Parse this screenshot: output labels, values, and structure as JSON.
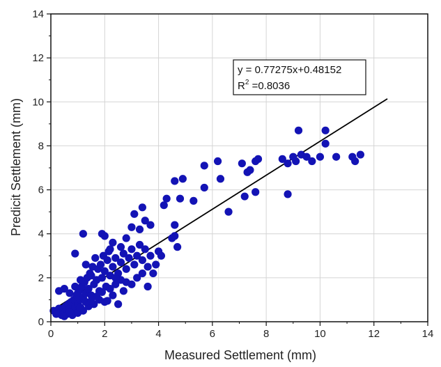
{
  "chart_data": {
    "type": "scatter",
    "xlabel": "Measured Settlement (mm)",
    "ylabel": "Predicit Settlement (mm)",
    "xlim": [
      0,
      14
    ],
    "ylim": [
      0,
      14
    ],
    "xticks": [
      0,
      2,
      4,
      6,
      8,
      10,
      12,
      14
    ],
    "yticks": [
      0,
      2,
      4,
      6,
      8,
      10,
      12,
      14
    ],
    "grid": true,
    "marker_color": "#1313b5",
    "fit_line": {
      "slope": 0.77275,
      "intercept": 0.48152,
      "x_range": [
        0.1,
        12.5
      ],
      "color": "#000000"
    },
    "annotation": {
      "equation": "y = 0.77275x+0.48152",
      "r2_prefix": "R",
      "r2_exponent": "2",
      "r2_value": " =0.8036"
    },
    "points": [
      [
        0.1,
        0.5
      ],
      [
        0.2,
        0.5
      ],
      [
        0.3,
        0.6
      ],
      [
        0.35,
        0.45
      ],
      [
        0.4,
        0.5
      ],
      [
        0.45,
        0.6
      ],
      [
        0.5,
        0.4
      ],
      [
        0.55,
        0.7
      ],
      [
        0.6,
        0.5
      ],
      [
        0.65,
        0.8
      ],
      [
        0.7,
        0.6
      ],
      [
        0.75,
        0.9
      ],
      [
        0.8,
        0.55
      ],
      [
        0.85,
        1.0
      ],
      [
        0.9,
        0.7
      ],
      [
        0.95,
        1.2
      ],
      [
        1.0,
        0.8
      ],
      [
        1.05,
        1.4
      ],
      [
        1.1,
        1.0
      ],
      [
        1.15,
        1.6
      ],
      [
        1.2,
        1.1
      ],
      [
        1.25,
        1.8
      ],
      [
        1.3,
        1.3
      ],
      [
        1.35,
        2.0
      ],
      [
        1.4,
        1.5
      ],
      [
        1.45,
        2.2
      ],
      [
        1.5,
        1.2
      ],
      [
        1.55,
        2.5
      ],
      [
        1.6,
        1.7
      ],
      [
        1.65,
        2.9
      ],
      [
        1.7,
        1.9
      ],
      [
        1.75,
        2.4
      ],
      [
        1.8,
        1.4
      ],
      [
        1.85,
        2.6
      ],
      [
        1.9,
        2.0
      ],
      [
        1.95,
        3.0
      ],
      [
        2.0,
        2.3
      ],
      [
        2.05,
        1.6
      ],
      [
        2.1,
        2.8
      ],
      [
        2.15,
        3.2
      ],
      [
        0.3,
        1.4
      ],
      [
        0.5,
        1.5
      ],
      [
        0.7,
        1.3
      ],
      [
        0.9,
        1.6
      ],
      [
        1.1,
        1.9
      ],
      [
        1.2,
        4.0
      ],
      [
        0.9,
        3.1
      ],
      [
        1.3,
        2.6
      ],
      [
        1.5,
        2.1
      ],
      [
        1.0,
        1.3
      ],
      [
        0.4,
        0.3
      ],
      [
        0.6,
        0.35
      ],
      [
        0.8,
        0.3
      ],
      [
        1.0,
        0.4
      ],
      [
        1.2,
        0.5
      ],
      [
        1.4,
        0.7
      ],
      [
        1.6,
        0.8
      ],
      [
        1.8,
        1.0
      ],
      [
        2.0,
        0.9
      ],
      [
        1.3,
        0.9
      ],
      [
        0.2,
        0.35
      ],
      [
        0.5,
        0.25
      ],
      [
        0.7,
        0.45
      ],
      [
        1.1,
        0.65
      ],
      [
        1.5,
        0.95
      ],
      [
        1.7,
        1.15
      ],
      [
        1.9,
        1.35
      ],
      [
        2.2,
        1.5
      ],
      [
        2.4,
        1.7
      ],
      [
        2.6,
        1.9
      ],
      [
        2.2,
        2.1
      ],
      [
        2.3,
        2.5
      ],
      [
        2.4,
        2.9
      ],
      [
        2.5,
        2.2
      ],
      [
        2.6,
        2.7
      ],
      [
        2.7,
        3.1
      ],
      [
        2.8,
        2.4
      ],
      [
        2.9,
        2.9
      ],
      [
        3.0,
        3.3
      ],
      [
        3.1,
        2.6
      ],
      [
        3.2,
        3.0
      ],
      [
        3.3,
        3.5
      ],
      [
        3.4,
        2.8
      ],
      [
        3.5,
        3.3
      ],
      [
        3.6,
        2.5
      ],
      [
        3.7,
        3.0
      ],
      [
        3.8,
        2.2
      ],
      [
        3.9,
        2.6
      ],
      [
        2.3,
        1.2
      ],
      [
        2.5,
        0.8
      ],
      [
        2.1,
        0.95
      ],
      [
        2.7,
        1.4
      ],
      [
        3.0,
        1.7
      ],
      [
        3.2,
        2.0
      ],
      [
        3.4,
        2.2
      ],
      [
        3.6,
        1.6
      ],
      [
        2.0,
        3.9
      ],
      [
        1.9,
        4.0
      ],
      [
        2.3,
        3.6
      ],
      [
        2.8,
        3.8
      ],
      [
        3.0,
        4.3
      ],
      [
        3.1,
        4.9
      ],
      [
        3.3,
        4.2
      ],
      [
        3.5,
        4.6
      ],
      [
        3.7,
        4.4
      ],
      [
        3.4,
        5.2
      ],
      [
        2.2,
        3.3
      ],
      [
        2.6,
        3.4
      ],
      [
        2.4,
        2.0
      ],
      [
        2.8,
        1.8
      ],
      [
        4.0,
        3.2
      ],
      [
        4.2,
        5.3
      ],
      [
        4.1,
        3.0
      ],
      [
        4.3,
        5.6
      ],
      [
        4.5,
        3.8
      ],
      [
        4.6,
        4.4
      ],
      [
        4.7,
        3.4
      ],
      [
        4.8,
        5.6
      ],
      [
        4.9,
        6.5
      ],
      [
        4.6,
        6.4
      ],
      [
        5.3,
        5.5
      ],
      [
        5.7,
        6.1
      ],
      [
        5.7,
        7.1
      ],
      [
        6.2,
        7.3
      ],
      [
        6.3,
        6.5
      ],
      [
        6.6,
        5.0
      ],
      [
        7.1,
        7.2
      ],
      [
        7.2,
        5.7
      ],
      [
        7.3,
        6.8
      ],
      [
        7.4,
        6.9
      ],
      [
        7.6,
        7.3
      ],
      [
        7.7,
        7.4
      ],
      [
        7.6,
        5.9
      ],
      [
        8.6,
        7.4
      ],
      [
        8.8,
        5.8
      ],
      [
        9.0,
        7.5
      ],
      [
        9.2,
        8.7
      ],
      [
        9.3,
        7.6
      ],
      [
        9.5,
        7.5
      ],
      [
        9.7,
        7.3
      ],
      [
        10.0,
        7.5
      ],
      [
        10.2,
        8.7
      ],
      [
        10.6,
        7.5
      ],
      [
        10.2,
        8.1
      ],
      [
        11.2,
        7.5
      ],
      [
        11.3,
        7.3
      ],
      [
        11.5,
        7.6
      ],
      [
        9.1,
        7.3
      ],
      [
        8.8,
        7.2
      ],
      [
        4.6,
        3.9
      ]
    ]
  }
}
